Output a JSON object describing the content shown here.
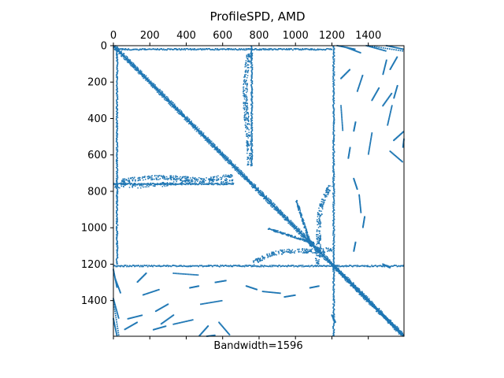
{
  "chart_data": {
    "type": "scatter",
    "subtype": "sparsity-pattern",
    "title": "ProfileSPD, AMD",
    "xlabel": "Bandwidth=1596",
    "ylabel": "",
    "xlim": [
      0,
      1596
    ],
    "ylim": [
      1596,
      0
    ],
    "x_tick_position": "top",
    "top_ticks": [
      0,
      200,
      400,
      600,
      800,
      1000,
      1200,
      1400
    ],
    "left_ticks": [
      0,
      200,
      400,
      600,
      800,
      1000,
      1200,
      1400
    ],
    "bottom_ticks_unlabeled": [
      0,
      200,
      400,
      600,
      800,
      1000,
      1200,
      1400
    ],
    "grid": false,
    "legend": "none",
    "marker_color": "#1f77b4",
    "structure": {
      "diagonal": {
        "from": 0,
        "to": 1596
      },
      "dense_diagonal_blocks": [
        [
          0,
          60
        ],
        [
          120,
          200
        ],
        [
          330,
          400
        ],
        [
          450,
          560
        ],
        [
          680,
          760
        ],
        [
          820,
          900
        ],
        [
          950,
          1050
        ],
        [
          1100,
          1200
        ],
        [
          1200,
          1596
        ]
      ],
      "coupling_rows": [
        {
          "row": 20,
          "cols": [
            [
              10,
              1200
            ]
          ]
        },
        {
          "row": 1210,
          "cols": [
            [
              0,
              1596
            ]
          ]
        },
        {
          "row": 760,
          "cols": [
            [
              0,
              660
            ]
          ]
        }
      ],
      "coupling_cols": [
        {
          "col": 20,
          "rows": [
            [
              10,
              1200
            ]
          ]
        },
        {
          "col": 1210,
          "rows": [
            [
              0,
              1596
            ]
          ]
        },
        {
          "col": 760,
          "rows": [
            [
              0,
              660
            ]
          ]
        }
      ],
      "off_diagonal_bands": [
        {
          "x": [
            1250,
            1596
          ],
          "y": [
            0,
            650
          ]
        },
        {
          "x": [
            0,
            650
          ],
          "y": [
            1250,
            1596
          ]
        }
      ]
    }
  }
}
